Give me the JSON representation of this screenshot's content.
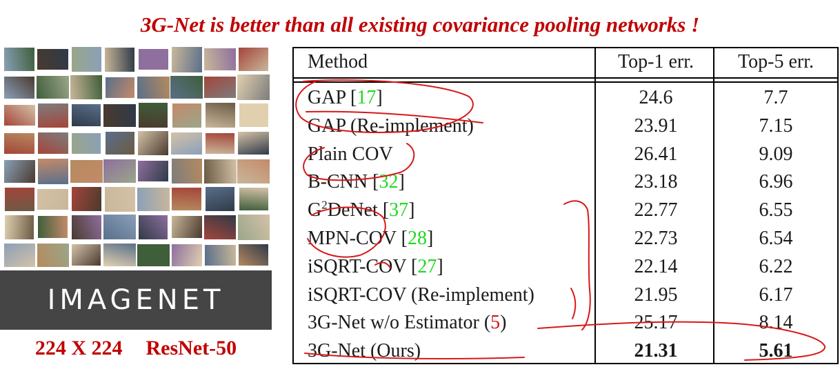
{
  "headline": "3G-Net is better than all existing covariance pooling networks !",
  "dataset_logo": "IMAGENET",
  "input_size": "224 X 224",
  "backbone": "ResNet-50",
  "table": {
    "headers": {
      "method": "Method",
      "top1": "Top-1 err.",
      "top5": "Top-5 err."
    },
    "rows": [
      {
        "name": "GAP",
        "ref": "17",
        "top1": "24.6",
        "top5": "7.7"
      },
      {
        "name": "GAP (Re-implement)",
        "ref": "",
        "top1": "23.91",
        "top5": "7.15"
      },
      {
        "name": "Plain COV",
        "ref": "",
        "top1": "26.41",
        "top5": "9.09"
      },
      {
        "name": "B-CNN",
        "ref": "32",
        "top1": "23.18",
        "top5": "6.96"
      },
      {
        "name_pre": "G",
        "name_sup": "2",
        "name": "DeNet",
        "ref": "37",
        "top1": "22.77",
        "top5": "6.55"
      },
      {
        "name": "MPN-COV",
        "ref": "28",
        "top1": "22.73",
        "top5": "6.54"
      },
      {
        "name": "iSQRT-COV",
        "ref": "27",
        "top1": "22.14",
        "top5": "6.22"
      },
      {
        "name": "iSQRT-COV (Re-implement)",
        "ref": "",
        "top1": "21.95",
        "top5": "6.17"
      },
      {
        "name": "3G-Net w/o Estimator",
        "ref": "5",
        "top1": "25.17",
        "top5": "8.14"
      },
      {
        "name": "3G-Net (Ours)",
        "ref": "",
        "top1": "21.31",
        "top5": "5.61"
      }
    ]
  },
  "colors": {
    "headline": "#c00000",
    "citation": "#1fd81f",
    "annotation_ink": "#d81818",
    "logo_bg": "#454545"
  }
}
